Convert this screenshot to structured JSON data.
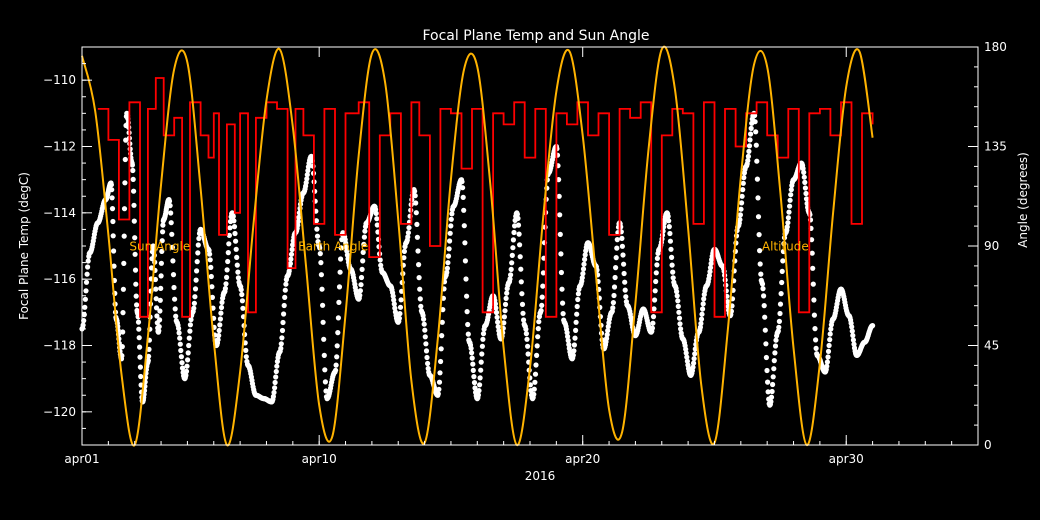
{
  "chart_data": {
    "type": "line",
    "title": "Focal Plane Temp and Sun Angle",
    "xlabel": "2016",
    "ylabel": "Focal Plane Temp (degC)",
    "y2label": "Angle (degrees)",
    "xticks": [
      {
        "day": 1,
        "label": "apr01"
      },
      {
        "day": 10,
        "label": "apr10"
      },
      {
        "day": 20,
        "label": "apr20"
      },
      {
        "day": 30,
        "label": "apr30"
      }
    ],
    "xlim": [
      1,
      35
    ],
    "ylim": [
      -121,
      -109
    ],
    "y2lim": [
      0,
      180
    ],
    "yticks": [
      -110,
      -112,
      -114,
      -116,
      -118,
      -120
    ],
    "y2ticks": [
      0,
      45,
      90,
      135,
      180
    ],
    "grid": false,
    "legend_labels": [
      "Sun Angle",
      "Earth Angle",
      "Altitude"
    ],
    "colors": {
      "background": "#000000",
      "axes": "#ffffff",
      "temperature": "#ffffff",
      "earth_angle": "#ff0000",
      "sun_angle": "#ffb300",
      "labels": "#ffb300"
    },
    "series": [
      {
        "name": "Focal Plane Temp",
        "axis": "left",
        "style": "points",
        "x": [
          1.0,
          1.3,
          1.6,
          1.9,
          2.1,
          2.3,
          2.5,
          2.7,
          2.9,
          3.1,
          3.3,
          3.5,
          3.7,
          3.9,
          4.1,
          4.3,
          4.6,
          4.9,
          5.2,
          5.5,
          5.8,
          6.1,
          6.4,
          6.7,
          7.0,
          7.3,
          7.6,
          7.9,
          8.2,
          8.5,
          8.8,
          9.1,
          9.4,
          9.7,
          10.0,
          10.3,
          10.6,
          10.9,
          11.2,
          11.5,
          11.8,
          12.1,
          12.4,
          12.7,
          13.0,
          13.3,
          13.6,
          13.9,
          14.2,
          14.5,
          14.8,
          15.1,
          15.4,
          15.7,
          16.0,
          16.3,
          16.6,
          16.9,
          17.2,
          17.5,
          17.8,
          18.1,
          18.4,
          18.7,
          19.0,
          19.3,
          19.6,
          19.9,
          20.2,
          20.5,
          20.8,
          21.1,
          21.4,
          21.7,
          22.0,
          22.3,
          22.6,
          22.9,
          23.2,
          23.5,
          23.8,
          24.1,
          24.4,
          24.7,
          25.0,
          25.3,
          25.6,
          25.9,
          26.2,
          26.5,
          26.8,
          27.1,
          27.4,
          27.7,
          28.0,
          28.3,
          28.6,
          28.9,
          29.2,
          29.5,
          29.8,
          30.1,
          30.4,
          30.7,
          31.0
        ],
        "y": [
          -117.5,
          -115.2,
          -114.3,
          -113.6,
          -113.1,
          -117.2,
          -118.4,
          -111.0,
          -112.5,
          -117.0,
          -119.7,
          -118.5,
          -115.0,
          -117.6,
          -114.2,
          -113.6,
          -117.3,
          -119.0,
          -117.0,
          -114.5,
          -115.1,
          -118.0,
          -116.4,
          -114.0,
          -116.2,
          -118.6,
          -119.5,
          -119.6,
          -119.7,
          -118.2,
          -115.9,
          -114.6,
          -113.4,
          -112.3,
          -115.0,
          -119.6,
          -118.8,
          -114.6,
          -115.7,
          -116.6,
          -114.3,
          -113.8,
          -115.8,
          -116.2,
          -117.3,
          -114.9,
          -113.3,
          -117.0,
          -118.9,
          -119.5,
          -115.9,
          -113.8,
          -113.0,
          -117.9,
          -119.6,
          -117.4,
          -116.5,
          -117.8,
          -116.1,
          -114.0,
          -117.4,
          -119.6,
          -117.0,
          -112.8,
          -112.0,
          -117.3,
          -118.4,
          -116.2,
          -114.9,
          -115.6,
          -118.1,
          -117.0,
          -114.3,
          -116.8,
          -117.7,
          -116.9,
          -117.6,
          -115.1,
          -114.0,
          -116.2,
          -117.8,
          -118.9,
          -117.6,
          -116.2,
          -115.1,
          -115.6,
          -117.1,
          -114.4,
          -112.6,
          -111.0,
          -116.1,
          -119.8,
          -117.6,
          -114.6,
          -113.0,
          -112.5,
          -114.0,
          -118.3,
          -118.8,
          -117.2,
          -116.3,
          -117.1,
          -118.3,
          -117.9,
          -117.4
        ]
      },
      {
        "name": "Earth Angle",
        "axis": "right",
        "style": "step",
        "x": [
          1.6,
          2.0,
          2.4,
          2.8,
          3.2,
          3.5,
          3.8,
          4.1,
          4.5,
          4.8,
          5.1,
          5.5,
          5.8,
          6.0,
          6.2,
          6.5,
          6.8,
          7.0,
          7.3,
          7.6,
          8.0,
          8.4,
          8.8,
          9.1,
          9.4,
          9.8,
          10.2,
          10.6,
          11.0,
          11.5,
          11.9,
          12.3,
          12.7,
          13.1,
          13.5,
          13.8,
          14.2,
          14.6,
          15.0,
          15.4,
          15.8,
          16.2,
          16.6,
          17.0,
          17.4,
          17.8,
          18.2,
          18.6,
          19.0,
          19.4,
          19.8,
          20.2,
          20.6,
          21.0,
          21.4,
          21.8,
          22.2,
          22.6,
          23.0,
          23.4,
          23.8,
          24.2,
          24.6,
          25.0,
          25.4,
          25.8,
          26.2,
          26.6,
          27.0,
          27.4,
          27.8,
          28.2,
          28.6,
          29.0,
          29.4,
          29.8,
          30.2,
          30.6,
          31.0
        ],
        "y": [
          152,
          138,
          102,
          155,
          58,
          152,
          166,
          140,
          148,
          58,
          155,
          140,
          130,
          150,
          95,
          145,
          105,
          150,
          60,
          148,
          155,
          152,
          80,
          152,
          140,
          100,
          152,
          95,
          150,
          155,
          85,
          140,
          150,
          100,
          155,
          140,
          90,
          152,
          150,
          125,
          152,
          60,
          150,
          145,
          155,
          130,
          152,
          58,
          150,
          145,
          155,
          140,
          150,
          95,
          152,
          148,
          155,
          60,
          140,
          152,
          150,
          100,
          155,
          58,
          152,
          135,
          150,
          155,
          140,
          130,
          152,
          60,
          150,
          152,
          140,
          155,
          100,
          150,
          145
        ]
      },
      {
        "name": "Sun Angle",
        "axis": "right",
        "style": "line",
        "x": [
          1.0,
          1.5,
          2.0,
          2.5,
          3.0,
          3.5,
          4.0,
          4.5,
          5.0,
          5.5,
          6.0,
          6.5,
          7.0,
          7.5,
          8.0,
          8.5,
          9.0,
          9.5,
          10.0,
          10.5,
          11.0,
          11.5,
          12.0,
          12.5,
          13.0,
          13.5,
          14.0,
          14.5,
          15.0,
          15.5,
          16.0,
          16.5,
          17.0,
          17.5,
          18.0,
          18.5,
          19.0,
          19.5,
          20.0,
          20.5,
          21.0,
          21.5,
          22.0,
          22.5,
          23.0,
          23.5,
          24.0,
          24.5,
          25.0,
          25.5,
          26.0,
          26.5,
          27.0,
          27.5,
          28.0,
          28.5,
          29.0,
          29.5,
          30.0,
          30.5,
          31.0
        ],
        "y": [
          176,
          151,
          95,
          32,
          0,
          49,
          118,
          170,
          173,
          116,
          47,
          0,
          33,
          99,
          156,
          179,
          144,
          81,
          18,
          4,
          59,
          131,
          177,
          164,
          102,
          29,
          1,
          48,
          120,
          170,
          171,
          117,
          44,
          0,
          35,
          103,
          160,
          178,
          140,
          77,
          16,
          6,
          64,
          134,
          179,
          161,
          98,
          27,
          1,
          51,
          121,
          172,
          171,
          114,
          44,
          0,
          37,
          105,
          162,
          178,
          139
        ]
      }
    ],
    "annotations": [
      {
        "text": "Sun Angle",
        "x": 2.8,
        "y_angle": 88
      },
      {
        "text": "Earth Angle",
        "x": 9.2,
        "y_angle": 88
      },
      {
        "text": "Altitude",
        "x": 26.8,
        "y_angle": 88
      }
    ]
  }
}
